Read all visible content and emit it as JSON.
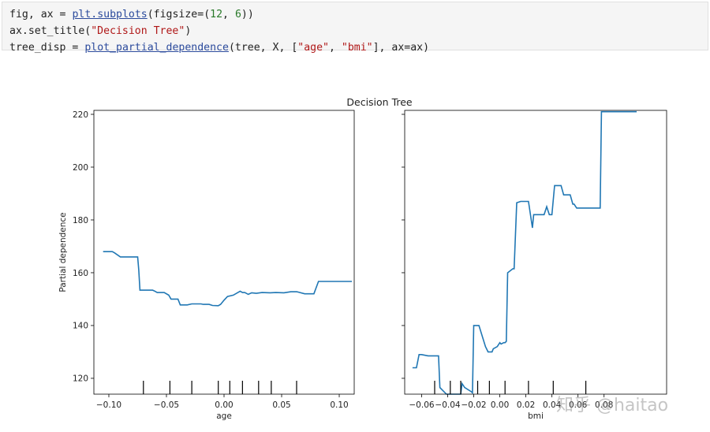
{
  "code": {
    "line1": {
      "a": "fig, ax ",
      "op1": "=",
      "sp": " ",
      "fn": "plt.subplots",
      "b": "(figsize",
      "op2": "=",
      "c": "(",
      "n1": "12",
      "d": ", ",
      "n2": "6",
      "e": "))"
    },
    "line2": {
      "a": "ax.set_title(",
      "s": "\"Decision Tree\"",
      "b": ")"
    },
    "line3": {
      "a": "tree_disp ",
      "op": "=",
      "sp": " ",
      "fn": "plot_partial_dependence",
      "b": "(tree, X, [",
      "s1": "\"age\"",
      "c": ", ",
      "s2": "\"bmi\"",
      "d": "], ax",
      "op2": "=",
      "e": "ax)"
    }
  },
  "watermark": "知乎 @haitao",
  "chart_data": {
    "type": "line",
    "title": "Decision Tree",
    "color": "#2077b4",
    "panels": [
      {
        "xlabel": "age",
        "ylabel": "Partial dependence",
        "xlim": [
          -0.113,
          0.113
        ],
        "ylim": [
          114,
          221.5
        ],
        "xticks": [
          -0.1,
          -0.05,
          0.0,
          0.05,
          0.1
        ],
        "xtick_labels": [
          "−0.10",
          "−0.05",
          "0.00",
          "0.05",
          "0.10"
        ],
        "yticks": [
          120,
          140,
          160,
          180,
          200,
          220
        ],
        "ytick_labels": [
          "120",
          "140",
          "160",
          "180",
          "200",
          "220"
        ],
        "deciles": [
          -0.07,
          -0.047,
          -0.028,
          -0.005,
          0.005,
          0.016,
          0.03,
          0.041,
          0.063
        ],
        "x": [
          -0.105,
          -0.097,
          -0.095,
          -0.09,
          -0.086,
          -0.081,
          -0.075,
          -0.074,
          -0.073,
          -0.062,
          -0.06,
          -0.058,
          -0.052,
          -0.048,
          -0.046,
          -0.04,
          -0.038,
          -0.035,
          -0.032,
          -0.028,
          -0.02,
          -0.018,
          -0.013,
          -0.01,
          -0.005,
          -0.003,
          0.0,
          0.003,
          0.008,
          0.014,
          0.016,
          0.018,
          0.021,
          0.024,
          0.028,
          0.033,
          0.04,
          0.045,
          0.052,
          0.058,
          0.063,
          0.064,
          0.07,
          0.078,
          0.082,
          0.111
        ],
        "y": [
          168,
          168,
          167.5,
          166,
          166,
          166,
          166,
          161,
          153.4,
          153.4,
          153,
          152.5,
          152.5,
          151.5,
          150,
          150,
          147.8,
          147.8,
          147.8,
          148.2,
          148.2,
          148,
          148,
          147.6,
          147.5,
          148,
          149.6,
          151,
          151.5,
          153,
          152.5,
          152.5,
          151.8,
          152.4,
          152.2,
          152.5,
          152.4,
          152.5,
          152.4,
          152.8,
          152.8,
          152.7,
          152,
          152,
          156.7,
          156.7
        ]
      },
      {
        "xlabel": "bmi",
        "ylabel": "",
        "xlim": [
          -0.073,
          0.128
        ],
        "ylim": [
          114,
          221.5
        ],
        "xticks": [
          -0.06,
          -0.04,
          -0.02,
          0.0,
          0.02,
          0.04,
          0.06,
          0.08
        ],
        "xtick_labels": [
          "−0.06",
          "−0.04",
          "−0.02",
          "0.00",
          "0.02",
          "0.04",
          "0.06",
          "0.08"
        ],
        "yticks": [
          120,
          140,
          160,
          180,
          200,
          220
        ],
        "deciles": [
          -0.05,
          -0.038,
          -0.03,
          -0.017,
          -0.008,
          0.004,
          0.022,
          0.041,
          0.066
        ],
        "x": [
          -0.067,
          -0.064,
          -0.062,
          -0.06,
          -0.055,
          -0.051,
          -0.047,
          -0.046,
          -0.041,
          -0.033,
          -0.03,
          -0.029,
          -0.027,
          -0.022,
          -0.021,
          -0.02,
          -0.016,
          -0.011,
          -0.009,
          -0.008,
          -0.006,
          -0.005,
          -0.002,
          0.0,
          0.001,
          0.003,
          0.004,
          0.005,
          0.006,
          0.01,
          0.011,
          0.013,
          0.016,
          0.019,
          0.022,
          0.025,
          0.026,
          0.028,
          0.03,
          0.031,
          0.032,
          0.034,
          0.036,
          0.038,
          0.039,
          0.04,
          0.042,
          0.043,
          0.045,
          0.047,
          0.049,
          0.054,
          0.056,
          0.057,
          0.059,
          0.068,
          0.077,
          0.078,
          0.105
        ],
        "y": [
          124,
          124,
          129,
          129,
          128.5,
          128.5,
          128.5,
          116.5,
          114,
          114,
          114,
          118,
          116.5,
          115,
          114.5,
          140,
          140,
          132,
          130,
          130,
          130,
          131.2,
          132,
          133.5,
          133,
          133.5,
          133.5,
          134,
          160,
          161.5,
          161.5,
          186.5,
          187,
          187,
          187,
          177,
          182,
          182,
          182,
          182,
          182,
          182,
          185,
          182,
          182,
          182,
          193,
          193,
          193,
          193,
          189.5,
          189.5,
          186,
          186,
          184.5,
          184.5,
          184.5,
          221,
          221
        ]
      }
    ]
  }
}
